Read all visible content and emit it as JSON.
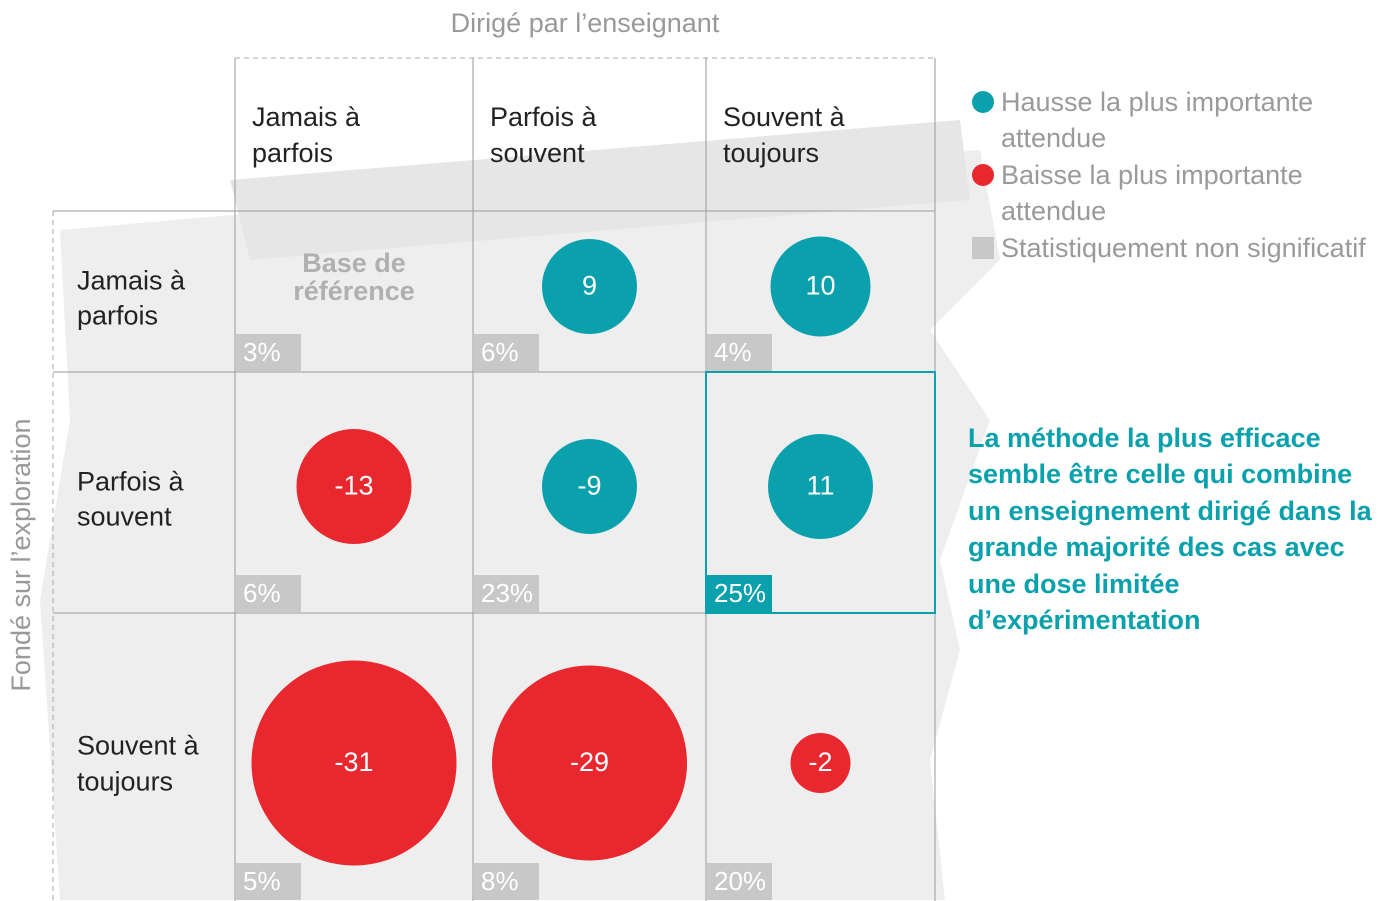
{
  "chart_data": {
    "type": "bubble-matrix",
    "x_label": "Dirigé par l’enseignant",
    "y_label": "Fondé sur l’exploration",
    "columns": [
      "Jamais à parfois",
      "Parfois à souvent",
      "Souvent à toujours"
    ],
    "rows": [
      {
        "label": "Jamais à parfois",
        "cells": [
          {
            "label": "Base de référence",
            "share": 3,
            "share_label": "3%"
          },
          {
            "value": 9,
            "color": "#0aa1ad",
            "share": 6,
            "share_label": "6%"
          },
          {
            "value": 10,
            "color": "#0aa1ad",
            "share": 4,
            "share_label": "4%"
          }
        ]
      },
      {
        "label": "Parfois à souvent",
        "cells": [
          {
            "value": -13,
            "color": "#e8282e",
            "share": 6,
            "share_label": "6%"
          },
          {
            "value": -9,
            "color": "#0aa1ad",
            "share": 23,
            "share_label": "23%"
          },
          {
            "value": 11,
            "color": "#0aa1ad",
            "share": 25,
            "share_label": "25%",
            "highlight": true
          }
        ]
      },
      {
        "label": "Souvent à toujours",
        "cells": [
          {
            "value": -31,
            "color": "#e8282e",
            "share": 5,
            "share_label": "5%"
          },
          {
            "value": -29,
            "color": "#e8282e",
            "share": 8,
            "share_label": "8%"
          },
          {
            "value": -2,
            "color": "#e8282e",
            "share": 20,
            "share_label": "20%"
          }
        ]
      }
    ],
    "legend": [
      {
        "name": "Hausse la plus importante attendue",
        "color": "#0aa1ad",
        "marker": "circle"
      },
      {
        "name": "Baisse la plus importante attendue",
        "color": "#e8282e",
        "marker": "circle"
      },
      {
        "name": "Statistiquement non significatif",
        "color": "#c8c8c8",
        "marker": "square"
      }
    ],
    "annotation": "La méthode la plus efficace semble être celle qui combine un enseignement dirigé dans la grande majorité des cas avec une dose limitée d’expérimentation",
    "annotation_color": "#0aa1ad"
  }
}
